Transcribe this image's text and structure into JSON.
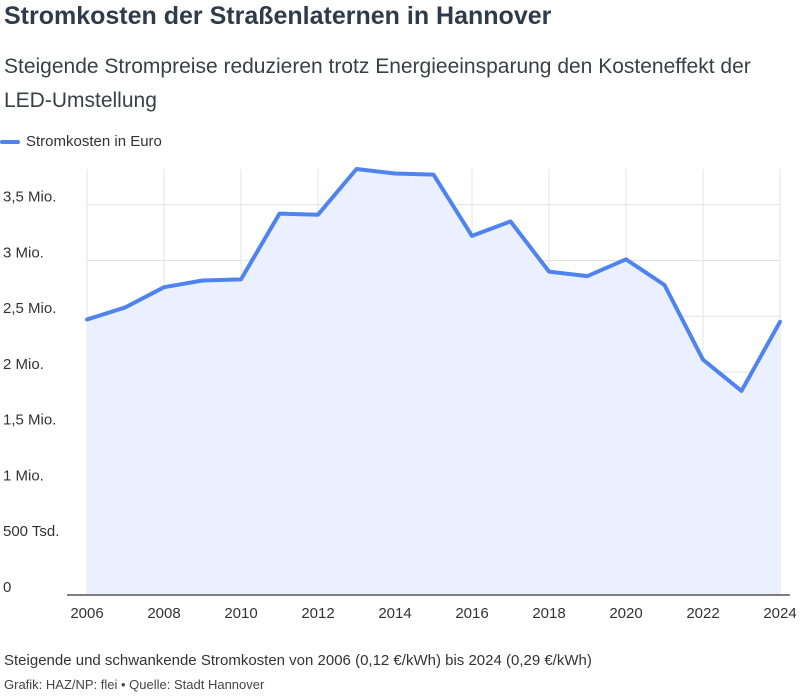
{
  "header": {
    "title": "Stromkosten der Straßenlaternen in Hannover",
    "subtitle": "Steigende Strompreise reduzieren trotz Energieeinsparung den Kosteneffekt der LED-Umstellung"
  },
  "footer": {
    "note": "Steigende und schwankende Stromkosten von 2006 (0,12 €/kWh) bis 2024 (0,29 €/kWh)",
    "credit": "Grafik: HAZ/NP: flei • Quelle: Stadt Hannover"
  },
  "colors": {
    "line": "#4f84f0",
    "area": "#eaf0fd",
    "grid": "#e3e3e3",
    "axis": "#333333"
  },
  "chart_data": {
    "type": "area",
    "title": "Stromkosten der Straßenlaternen in Hannover",
    "subtitle": "Steigende Strompreise reduzieren trotz Energieeinsparung den Kosteneffekt der LED-Umstellung",
    "xlabel": "",
    "ylabel": "",
    "legend": "top-left",
    "grid": true,
    "x": [
      2006,
      2007,
      2008,
      2009,
      2010,
      2011,
      2012,
      2013,
      2014,
      2015,
      2016,
      2017,
      2018,
      2019,
      2020,
      2021,
      2022,
      2023,
      2024
    ],
    "series": [
      {
        "name": "Stromkosten in Euro",
        "values": [
          2470000,
          2580000,
          2760000,
          2820000,
          2830000,
          3420000,
          3410000,
          3820000,
          3780000,
          3770000,
          3220000,
          3350000,
          2900000,
          2860000,
          3010000,
          2780000,
          2110000,
          1830000,
          2450000
        ]
      }
    ],
    "xlim": [
      2006,
      2024
    ],
    "ylim": [
      0,
      3820000
    ],
    "x_ticks": [
      2006,
      2008,
      2010,
      2012,
      2014,
      2016,
      2018,
      2020,
      2022,
      2024
    ],
    "y_ticks": [
      {
        "value": 0,
        "label": "0"
      },
      {
        "value": 500000,
        "label": "500 Tsd."
      },
      {
        "value": 1000000,
        "label": "1 Mio."
      },
      {
        "value": 1500000,
        "label": "1,5 Mio."
      },
      {
        "value": 2000000,
        "label": "2 Mio."
      },
      {
        "value": 2500000,
        "label": "2,5 Mio."
      },
      {
        "value": 3000000,
        "label": "3 Mio."
      },
      {
        "value": 3500000,
        "label": "3,5 Mio."
      }
    ]
  }
}
